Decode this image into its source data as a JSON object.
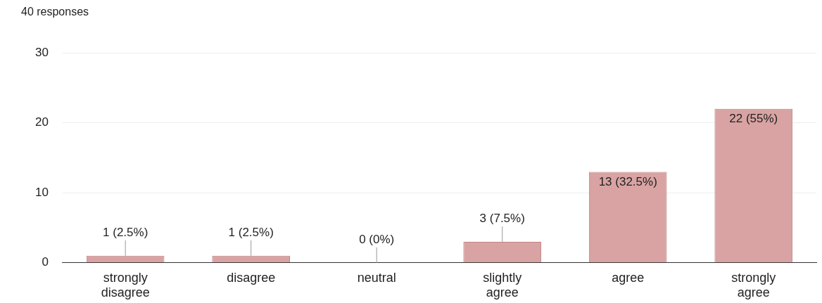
{
  "chart_data": {
    "type": "bar",
    "title": "40 responses",
    "categories": [
      "strongly disagree",
      "disagree",
      "neutral",
      "slightly agree",
      "agree",
      "strongly agree"
    ],
    "values": [
      1,
      1,
      0,
      3,
      13,
      22
    ],
    "value_labels": [
      "1 (2.5%)",
      "1 (2.5%)",
      "0 (0%)",
      "3 (7.5%)",
      "13 (32.5%)",
      "22 (55%)"
    ],
    "color": "#d9a3a3",
    "ylim": [
      0,
      30
    ],
    "yticks": [
      0,
      10,
      20,
      30
    ],
    "grid": "y",
    "legend": false
  }
}
